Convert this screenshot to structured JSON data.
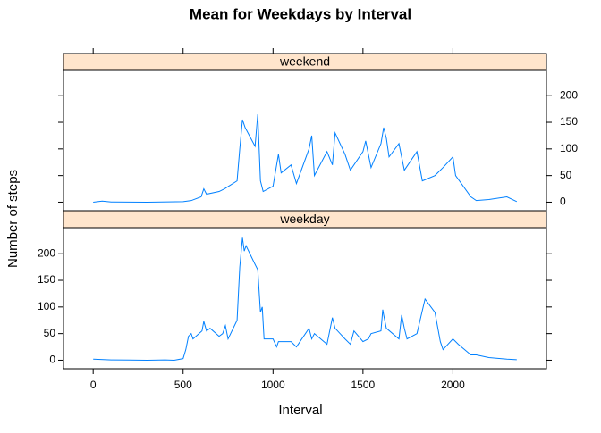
{
  "chart_data": {
    "type": "line",
    "title": "Mean for Weekdays by Interval",
    "xlabel": "Interval",
    "ylabel": "Number of steps",
    "color": "#0080ff",
    "strip_color": "#ffe5cc",
    "xlim": [
      -165,
      2520
    ],
    "ylim": [
      -16,
      249
    ],
    "xticks": [
      0,
      500,
      1000,
      1500,
      2000
    ],
    "yticks": [
      0,
      50,
      100,
      150,
      200
    ],
    "panels": [
      {
        "name": "weekend",
        "x": [
          0,
          50,
          100,
          300,
          500,
          545,
          600,
          615,
          630,
          700,
          730,
          800,
          815,
          830,
          845,
          900,
          915,
          930,
          945,
          1000,
          1015,
          1030,
          1045,
          1100,
          1130,
          1200,
          1215,
          1230,
          1300,
          1330,
          1345,
          1400,
          1430,
          1500,
          1515,
          1545,
          1600,
          1615,
          1630,
          1645,
          1700,
          1730,
          1800,
          1830,
          1900,
          1945,
          2000,
          2015,
          2100,
          2130,
          2200,
          2300,
          2355
        ],
        "values": [
          0,
          2,
          0.3,
          0,
          1,
          3,
          10,
          25,
          15,
          20,
          25,
          40,
          100,
          155,
          140,
          105,
          165,
          40,
          20,
          30,
          60,
          90,
          55,
          70,
          35,
          100,
          125,
          50,
          95,
          70,
          130,
          90,
          60,
          95,
          115,
          65,
          110,
          140,
          120,
          85,
          110,
          60,
          95,
          40,
          50,
          65,
          85,
          50,
          10,
          3,
          5,
          10,
          1
        ]
      },
      {
        "name": "weekday",
        "x": [
          0,
          100,
          200,
          300,
          400,
          450,
          500,
          515,
          530,
          545,
          555,
          605,
          615,
          630,
          650,
          700,
          720,
          735,
          750,
          800,
          815,
          830,
          840,
          850,
          900,
          915,
          930,
          940,
          950,
          1000,
          1020,
          1030,
          1100,
          1130,
          1200,
          1215,
          1230,
          1300,
          1330,
          1345,
          1400,
          1430,
          1450,
          1500,
          1530,
          1545,
          1600,
          1610,
          1615,
          1630,
          1700,
          1715,
          1730,
          1745,
          1800,
          1845,
          1900,
          1930,
          1945,
          2000,
          2030,
          2100,
          2130,
          2200,
          2300,
          2355
        ],
        "values": [
          2,
          0.5,
          0.3,
          0,
          0.5,
          0,
          3,
          20,
          45,
          50,
          40,
          55,
          73,
          55,
          60,
          45,
          50,
          65,
          40,
          75,
          175,
          230,
          205,
          215,
          180,
          170,
          90,
          100,
          40,
          40,
          25,
          35,
          35,
          25,
          60,
          40,
          50,
          30,
          80,
          60,
          40,
          30,
          55,
          35,
          40,
          50,
          55,
          95,
          85,
          60,
          40,
          85,
          60,
          40,
          50,
          115,
          90,
          35,
          20,
          40,
          30,
          10,
          10,
          5,
          2,
          1
        ]
      }
    ]
  }
}
